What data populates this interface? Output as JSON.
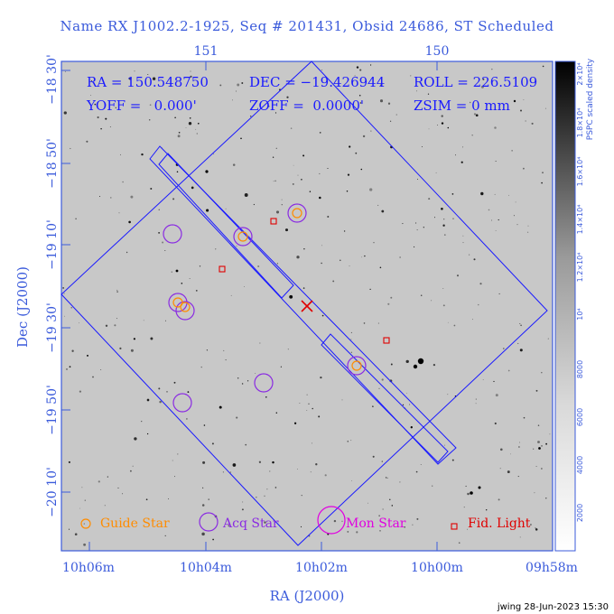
{
  "title": "Name RX J1002.2-1925, Seq # 201431, Obsid 24686, ST Scheduled",
  "readout": {
    "line1_ra": "RA = 150.548750",
    "line1_dec": "DEC = −19.426944",
    "line1_roll": "ROLL = 226.5109",
    "line2_yoff": "YOFF =   0.000'",
    "line2_zoff": "ZOFF =  0.0000'",
    "line2_zsim": "ZSIM = 0 mm"
  },
  "axes": {
    "x_label": "RA (J2000)",
    "y_label": "Dec (J2000)",
    "x_ticks_bottom": [
      "10h06m",
      "10h04m",
      "10h02m",
      "10h00m",
      "09h58m"
    ],
    "x_ticks_top": [
      "151",
      "150"
    ],
    "y_ticks": [
      "−18 30'",
      "−18 50'",
      "−19 10'",
      "−19 30'",
      "−19 50'",
      "−20 10'"
    ]
  },
  "colorbar": {
    "label": "PSPC scaled density",
    "ticks": [
      "2000",
      "4000",
      "6000",
      "8000",
      "10⁴",
      "1.2×10⁴",
      "1.4×10⁴",
      "1.6×10⁴",
      "1.8×10⁴",
      "2×10⁴"
    ]
  },
  "legend": {
    "guide": "Guide Star",
    "acq": "Acq Star",
    "mon": "Mon Star",
    "fid": "Fid. Light"
  },
  "colors": {
    "axis": "#3b5bdb",
    "guide": "#ff8c00",
    "acq": "#8a2be2",
    "mon": "#e000e0",
    "fid": "#e00000",
    "overlay": "#1a1aff"
  },
  "footer": "jwing 28-Jun-2023 15:30"
}
